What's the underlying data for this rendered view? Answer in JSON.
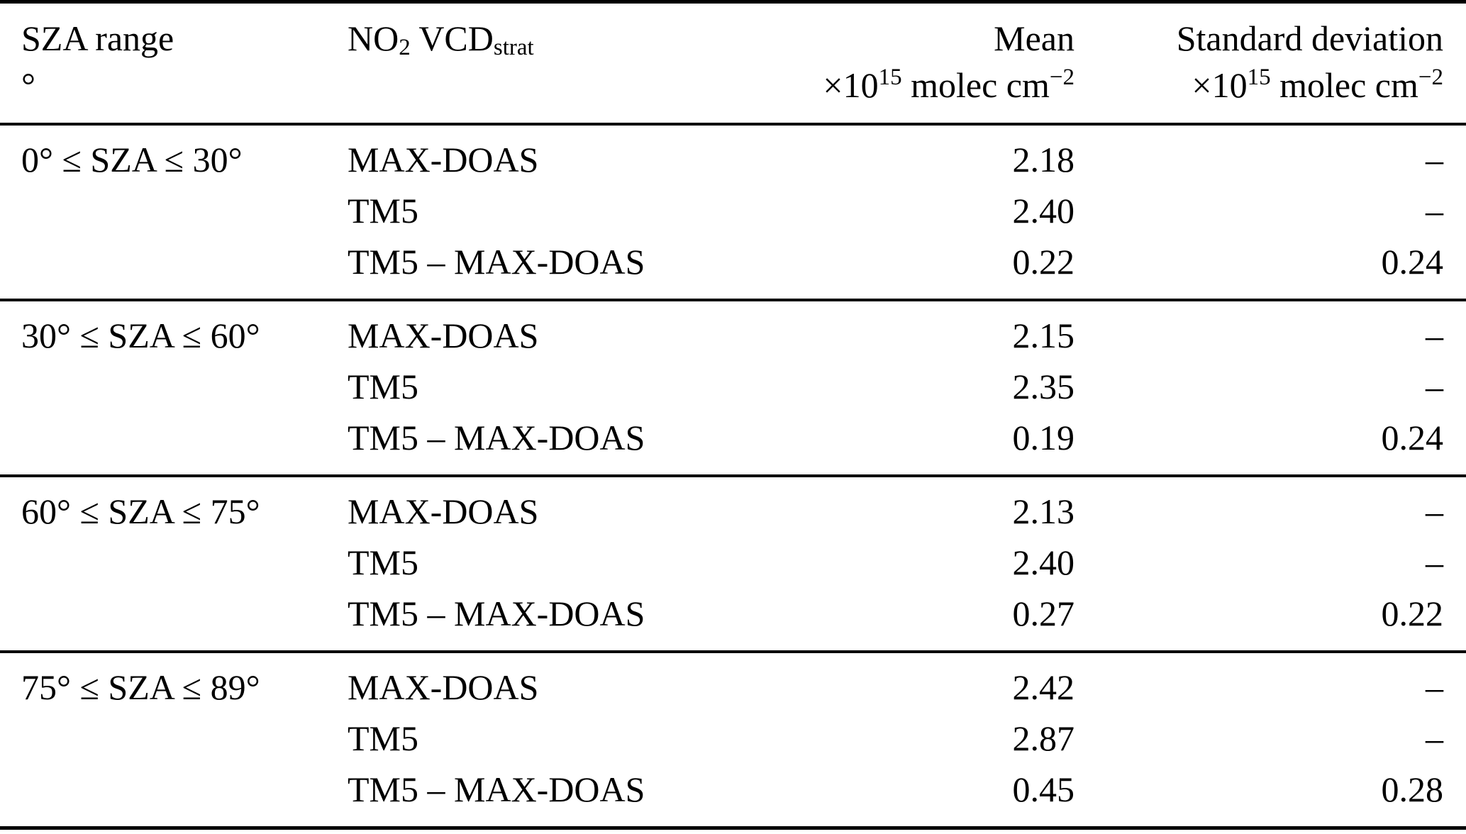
{
  "header": {
    "col1": {
      "line1": "SZA range",
      "line2": "°"
    },
    "col2": {
      "no": "NO",
      "no_sub": "2",
      "vcd": " VCD",
      "vcd_sub": "strat"
    },
    "col3": {
      "line1": "Mean",
      "times": "×10",
      "exp": "15",
      "unit": " molec cm",
      "unit_exp": "−2"
    },
    "col4": {
      "line1": "Standard deviation",
      "times": "×10",
      "exp": "15",
      "unit": " molec cm",
      "unit_exp": "−2"
    }
  },
  "groups": [
    {
      "sza_range": "0° ≤ SZA ≤ 30°",
      "rows": [
        {
          "dataset": "MAX-DOAS",
          "mean": "2.18",
          "std": "–"
        },
        {
          "dataset": "TM5",
          "mean": "2.40",
          "std": "–"
        },
        {
          "dataset": "TM5 – MAX-DOAS",
          "mean": "0.22",
          "std": "0.24"
        }
      ]
    },
    {
      "sza_range": "30° ≤ SZA ≤ 60°",
      "rows": [
        {
          "dataset": "MAX-DOAS",
          "mean": "2.15",
          "std": "–"
        },
        {
          "dataset": "TM5",
          "mean": "2.35",
          "std": "–"
        },
        {
          "dataset": "TM5 – MAX-DOAS",
          "mean": "0.19",
          "std": "0.24"
        }
      ]
    },
    {
      "sza_range": "60° ≤ SZA ≤ 75°",
      "rows": [
        {
          "dataset": "MAX-DOAS",
          "mean": "2.13",
          "std": "–"
        },
        {
          "dataset": "TM5",
          "mean": "2.40",
          "std": "–"
        },
        {
          "dataset": "TM5 – MAX-DOAS",
          "mean": "0.27",
          "std": "0.22"
        }
      ]
    },
    {
      "sza_range": "75° ≤ SZA ≤ 89°",
      "rows": [
        {
          "dataset": "MAX-DOAS",
          "mean": "2.42",
          "std": "–"
        },
        {
          "dataset": "TM5",
          "mean": "2.87",
          "std": "–"
        },
        {
          "dataset": "TM5 – MAX-DOAS",
          "mean": "0.45",
          "std": "0.28"
        }
      ]
    }
  ]
}
